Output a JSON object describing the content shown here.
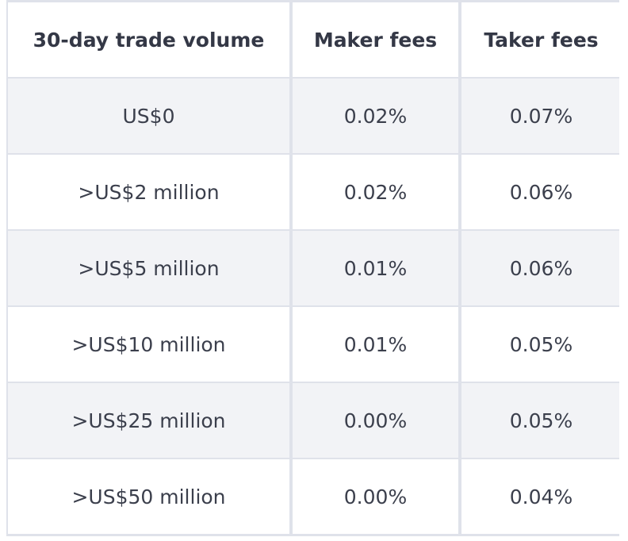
{
  "table": {
    "headers": [
      "30-day trade volume",
      "Maker fees",
      "Taker fees"
    ],
    "rows": [
      [
        "US$0",
        "0.02%",
        "0.07%"
      ],
      [
        ">US$2 million",
        "0.02%",
        "0.06%"
      ],
      [
        ">US$5 million",
        "0.01%",
        "0.06%"
      ],
      [
        ">US$10 million",
        "0.01%",
        "0.05%"
      ],
      [
        ">US$25 million",
        "0.00%",
        "0.05%"
      ],
      [
        ">US$50 million",
        "0.00%",
        "0.04%"
      ]
    ]
  },
  "colors": {
    "border": "#dfe2ea",
    "shaded_row": "#f2f3f6",
    "plain_row": "#ffffff",
    "text": "#3b3f4c"
  }
}
